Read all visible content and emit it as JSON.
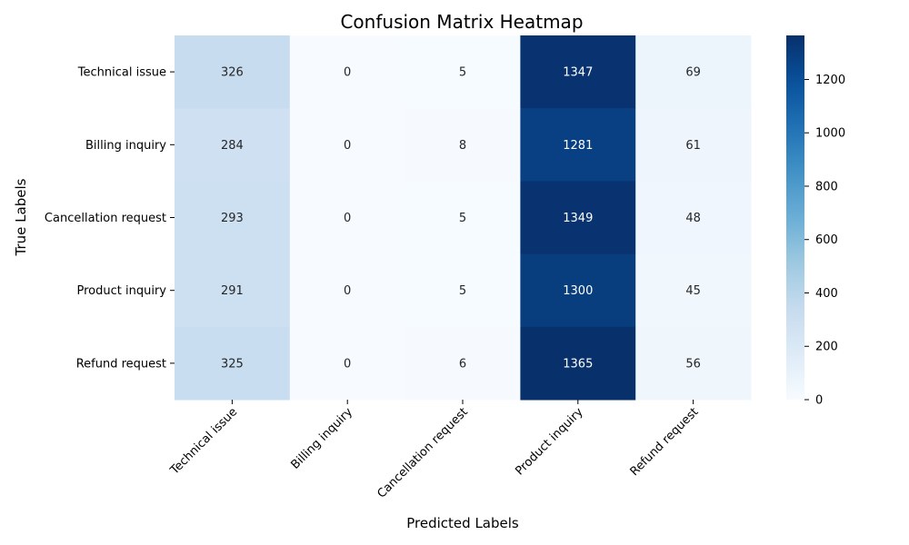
{
  "chart_data": {
    "type": "heatmap",
    "title": "Confusion Matrix Heatmap",
    "xlabel": "Predicted Labels",
    "ylabel": "True Labels",
    "x_categories": [
      "Technical issue",
      "Billing inquiry",
      "Cancellation request",
      "Product inquiry",
      "Refund request"
    ],
    "y_categories": [
      "Technical issue",
      "Billing inquiry",
      "Cancellation request",
      "Product inquiry",
      "Refund request"
    ],
    "values": [
      [
        326,
        0,
        5,
        1347,
        69
      ],
      [
        284,
        0,
        8,
        1281,
        61
      ],
      [
        293,
        0,
        5,
        1349,
        48
      ],
      [
        291,
        0,
        5,
        1300,
        45
      ],
      [
        325,
        0,
        6,
        1365,
        56
      ]
    ],
    "colormap": "Blues",
    "color_range": [
      0,
      1365
    ],
    "colorbar_ticks": [
      0,
      200,
      400,
      600,
      800,
      1000,
      1200
    ],
    "grid": false
  }
}
